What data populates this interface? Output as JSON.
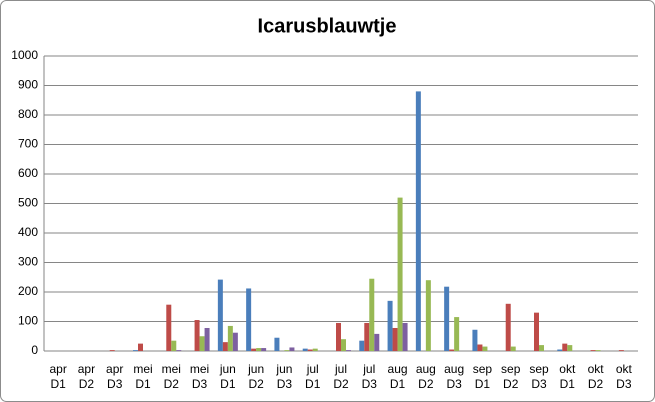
{
  "chart_data": {
    "type": "bar",
    "title": "Icarusblauwtje",
    "categories": [
      [
        "apr",
        "D1"
      ],
      [
        "apr",
        "D2"
      ],
      [
        "apr",
        "D3"
      ],
      [
        "mei",
        "D1"
      ],
      [
        "mei",
        "D2"
      ],
      [
        "mei",
        "D3"
      ],
      [
        "jun",
        "D1"
      ],
      [
        "jun",
        "D2"
      ],
      [
        "jun",
        "D3"
      ],
      [
        "jul",
        "D1"
      ],
      [
        "jul",
        "D2"
      ],
      [
        "jul",
        "D3"
      ],
      [
        "aug",
        "D1"
      ],
      [
        "aug",
        "D2"
      ],
      [
        "aug",
        "D3"
      ],
      [
        "sep",
        "D1"
      ],
      [
        "sep",
        "D2"
      ],
      [
        "sep",
        "D3"
      ],
      [
        "okt",
        "D1"
      ],
      [
        "okt",
        "D2"
      ],
      [
        "okt",
        "D3"
      ]
    ],
    "series": [
      {
        "color": "#4a7ebb",
        "values": [
          0,
          0,
          0,
          3,
          0,
          0,
          242,
          212,
          45,
          8,
          0,
          35,
          170,
          880,
          218,
          72,
          0,
          0,
          5,
          0,
          0
        ]
      },
      {
        "color": "#be4b48",
        "values": [
          0,
          0,
          3,
          25,
          157,
          105,
          30,
          8,
          0,
          5,
          95,
          95,
          78,
          0,
          5,
          22,
          160,
          130,
          25,
          3,
          3
        ]
      },
      {
        "color": "#98b954",
        "values": [
          0,
          0,
          0,
          0,
          35,
          50,
          85,
          10,
          3,
          8,
          40,
          245,
          520,
          240,
          115,
          15,
          15,
          20,
          20,
          3,
          0
        ]
      },
      {
        "color": "#7d60a0",
        "values": [
          0,
          0,
          0,
          0,
          3,
          78,
          62,
          10,
          12,
          0,
          3,
          58,
          95,
          0,
          0,
          0,
          0,
          0,
          0,
          0,
          0
        ]
      }
    ],
    "ylim": [
      0,
      1000
    ],
    "yticks": [
      0,
      100,
      200,
      300,
      400,
      500,
      600,
      700,
      800,
      900,
      1000
    ],
    "grid": true
  }
}
